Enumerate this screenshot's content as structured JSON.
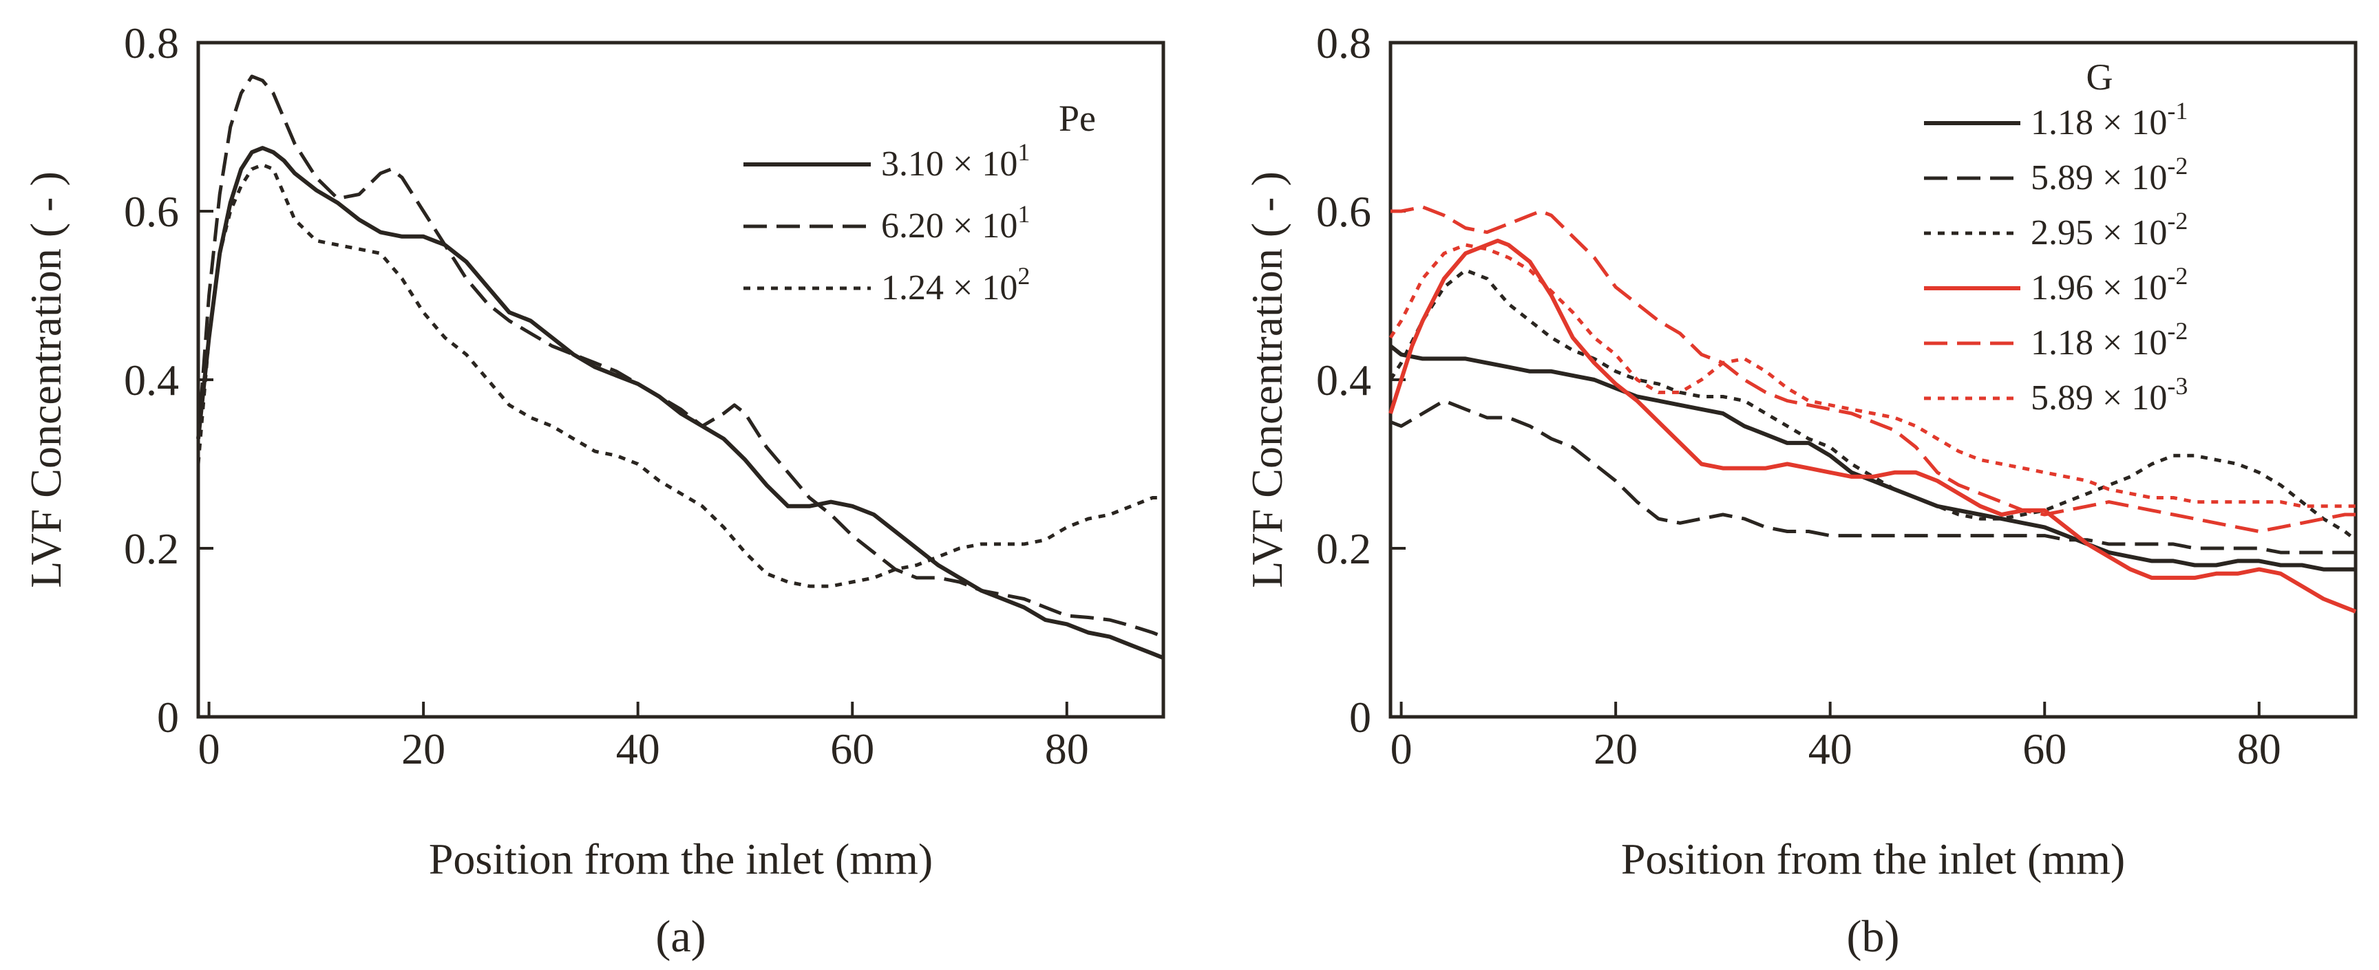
{
  "figure": {
    "panel_labels": [
      "(a)",
      "(b)"
    ]
  },
  "chart_data": [
    {
      "type": "line",
      "panel": "(a)",
      "title": "",
      "xlabel": "Position from the inlet  (mm)",
      "ylabel": "LVF Concentration ( - )",
      "xlim": [
        -1,
        89
      ],
      "ylim": [
        0,
        0.8
      ],
      "xticks": [
        0,
        20,
        40,
        60,
        80
      ],
      "xtick_labels": [
        "0",
        "20",
        "40",
        "60",
        "80"
      ],
      "yticks": [
        0,
        0.2,
        0.4,
        0.6,
        0.8
      ],
      "ytick_labels": [
        "0",
        "0.2",
        "0.4",
        "0.6",
        "0.8"
      ],
      "grid": false,
      "legend_title": "Pe",
      "legend_position": "top-right",
      "series": [
        {
          "name": "3.10 × 10^1",
          "label_main": "3.10 × 10",
          "label_exp": "1",
          "color": "#2a2520",
          "dash": "solid",
          "x": [
            -1,
            0,
            1,
            2,
            3,
            4,
            5,
            6,
            7,
            8,
            10,
            12,
            14,
            16,
            18,
            20,
            22,
            24,
            26,
            28,
            30,
            32,
            34,
            36,
            38,
            40,
            42,
            44,
            46,
            48,
            50,
            52,
            54,
            56,
            58,
            60,
            62,
            64,
            66,
            68,
            70,
            72,
            74,
            76,
            78,
            80,
            82,
            84,
            86,
            88,
            89
          ],
          "y": [
            0.33,
            0.45,
            0.55,
            0.61,
            0.65,
            0.67,
            0.675,
            0.67,
            0.66,
            0.645,
            0.625,
            0.61,
            0.59,
            0.575,
            0.57,
            0.57,
            0.56,
            0.54,
            0.51,
            0.48,
            0.47,
            0.45,
            0.43,
            0.415,
            0.405,
            0.395,
            0.38,
            0.36,
            0.345,
            0.33,
            0.305,
            0.275,
            0.25,
            0.25,
            0.255,
            0.25,
            0.24,
            0.22,
            0.2,
            0.18,
            0.165,
            0.15,
            0.14,
            0.13,
            0.115,
            0.11,
            0.1,
            0.095,
            0.085,
            0.075,
            0.07
          ]
        },
        {
          "name": "6.20 × 10^1",
          "label_main": "6.20 × 10",
          "label_exp": "1",
          "color": "#2a2520",
          "dash": "dashed",
          "x": [
            -1,
            0,
            1,
            2,
            3,
            4,
            5,
            6,
            7,
            8,
            10,
            12,
            14,
            16,
            17,
            18,
            20,
            22,
            24,
            26,
            28,
            30,
            32,
            34,
            36,
            38,
            40,
            42,
            44,
            46,
            48,
            49,
            50,
            52,
            54,
            56,
            58,
            60,
            62,
            64,
            66,
            68,
            70,
            72,
            74,
            76,
            78,
            80,
            82,
            84,
            86,
            88,
            89
          ],
          "y": [
            0.33,
            0.5,
            0.62,
            0.7,
            0.74,
            0.76,
            0.755,
            0.74,
            0.71,
            0.68,
            0.64,
            0.615,
            0.62,
            0.645,
            0.65,
            0.64,
            0.6,
            0.56,
            0.52,
            0.49,
            0.47,
            0.455,
            0.44,
            0.43,
            0.42,
            0.41,
            0.395,
            0.38,
            0.365,
            0.345,
            0.36,
            0.37,
            0.36,
            0.32,
            0.29,
            0.26,
            0.24,
            0.215,
            0.195,
            0.175,
            0.165,
            0.165,
            0.16,
            0.15,
            0.145,
            0.14,
            0.13,
            0.12,
            0.118,
            0.115,
            0.108,
            0.1,
            0.095
          ]
        },
        {
          "name": "1.24 × 10^2",
          "label_main": "1.24 × 10",
          "label_exp": "2",
          "color": "#2a2520",
          "dash": "dotted",
          "x": [
            -1,
            0,
            1,
            2,
            3,
            4,
            5,
            6,
            7,
            8,
            10,
            12,
            14,
            16,
            18,
            20,
            22,
            24,
            26,
            28,
            30,
            32,
            34,
            36,
            38,
            40,
            42,
            44,
            46,
            48,
            50,
            52,
            54,
            56,
            58,
            60,
            62,
            64,
            66,
            68,
            70,
            72,
            74,
            76,
            78,
            80,
            82,
            84,
            86,
            88,
            89
          ],
          "y": [
            0.3,
            0.45,
            0.55,
            0.6,
            0.63,
            0.65,
            0.655,
            0.65,
            0.62,
            0.59,
            0.565,
            0.56,
            0.555,
            0.55,
            0.52,
            0.48,
            0.45,
            0.43,
            0.4,
            0.37,
            0.355,
            0.345,
            0.33,
            0.315,
            0.31,
            0.3,
            0.28,
            0.265,
            0.25,
            0.225,
            0.195,
            0.17,
            0.16,
            0.155,
            0.155,
            0.16,
            0.165,
            0.175,
            0.18,
            0.19,
            0.2,
            0.205,
            0.205,
            0.205,
            0.21,
            0.225,
            0.235,
            0.24,
            0.25,
            0.26,
            0.26
          ]
        }
      ]
    },
    {
      "type": "line",
      "panel": "(b)",
      "title": "",
      "xlabel": "Position from the inlet  (mm)",
      "ylabel": "LVF Concentration ( - )",
      "xlim": [
        -1,
        89
      ],
      "ylim": [
        0,
        0.8
      ],
      "xticks": [
        0,
        20,
        40,
        60,
        80
      ],
      "xtick_labels": [
        "0",
        "20",
        "40",
        "60",
        "80"
      ],
      "yticks": [
        0,
        0.2,
        0.4,
        0.6,
        0.8
      ],
      "ytick_labels": [
        "0",
        "0.2",
        "0.4",
        "0.6",
        "0.8"
      ],
      "grid": false,
      "legend_title": "G",
      "legend_position": "top-right",
      "series": [
        {
          "name": "1.18 × 10^-1",
          "label_main": "1.18 × 10",
          "label_exp": "-1",
          "color": "#2a2520",
          "dash": "solid",
          "x": [
            -1,
            0,
            2,
            4,
            6,
            8,
            10,
            12,
            14,
            16,
            18,
            20,
            22,
            24,
            26,
            28,
            30,
            32,
            34,
            36,
            38,
            40,
            42,
            44,
            46,
            48,
            50,
            52,
            54,
            56,
            58,
            60,
            62,
            64,
            66,
            68,
            70,
            72,
            74,
            76,
            78,
            80,
            82,
            84,
            86,
            88,
            89
          ],
          "y": [
            0.44,
            0.43,
            0.425,
            0.425,
            0.425,
            0.42,
            0.415,
            0.41,
            0.41,
            0.405,
            0.4,
            0.39,
            0.38,
            0.375,
            0.37,
            0.365,
            0.36,
            0.345,
            0.335,
            0.325,
            0.325,
            0.31,
            0.29,
            0.28,
            0.27,
            0.26,
            0.25,
            0.245,
            0.24,
            0.235,
            0.23,
            0.225,
            0.215,
            0.205,
            0.195,
            0.19,
            0.185,
            0.185,
            0.18,
            0.18,
            0.185,
            0.185,
            0.18,
            0.18,
            0.175,
            0.175,
            0.175
          ]
        },
        {
          "name": "5.89 × 10^-2",
          "label_main": "5.89 × 10",
          "label_exp": "-2",
          "color": "#2a2520",
          "dash": "dashed",
          "x": [
            -1,
            0,
            2,
            4,
            6,
            8,
            10,
            12,
            14,
            16,
            18,
            20,
            22,
            24,
            26,
            28,
            30,
            32,
            34,
            36,
            38,
            40,
            42,
            44,
            46,
            48,
            50,
            52,
            54,
            56,
            58,
            60,
            62,
            64,
            66,
            68,
            70,
            72,
            74,
            76,
            78,
            80,
            82,
            84,
            86,
            88,
            89
          ],
          "y": [
            0.35,
            0.345,
            0.36,
            0.375,
            0.365,
            0.355,
            0.355,
            0.345,
            0.33,
            0.32,
            0.3,
            0.28,
            0.255,
            0.235,
            0.23,
            0.235,
            0.24,
            0.235,
            0.225,
            0.22,
            0.22,
            0.215,
            0.215,
            0.215,
            0.215,
            0.215,
            0.215,
            0.215,
            0.215,
            0.215,
            0.215,
            0.215,
            0.21,
            0.21,
            0.205,
            0.205,
            0.205,
            0.205,
            0.2,
            0.2,
            0.2,
            0.2,
            0.195,
            0.195,
            0.195,
            0.195,
            0.195
          ]
        },
        {
          "name": "2.95 × 10^-2",
          "label_main": "2.95 × 10",
          "label_exp": "-2",
          "color": "#2a2520",
          "dash": "dotted",
          "x": [
            -1,
            0,
            2,
            4,
            6,
            8,
            10,
            12,
            14,
            16,
            18,
            20,
            22,
            24,
            26,
            28,
            30,
            32,
            34,
            36,
            38,
            40,
            42,
            44,
            46,
            48,
            50,
            52,
            54,
            56,
            58,
            60,
            62,
            64,
            66,
            68,
            70,
            72,
            74,
            76,
            78,
            80,
            82,
            84,
            86,
            88,
            89
          ],
          "y": [
            0.4,
            0.42,
            0.47,
            0.51,
            0.53,
            0.52,
            0.49,
            0.47,
            0.45,
            0.435,
            0.425,
            0.41,
            0.4,
            0.395,
            0.385,
            0.38,
            0.38,
            0.375,
            0.36,
            0.345,
            0.33,
            0.32,
            0.3,
            0.285,
            0.27,
            0.26,
            0.25,
            0.24,
            0.235,
            0.235,
            0.24,
            0.245,
            0.255,
            0.265,
            0.275,
            0.285,
            0.3,
            0.31,
            0.31,
            0.305,
            0.3,
            0.29,
            0.275,
            0.255,
            0.235,
            0.22,
            0.21
          ]
        },
        {
          "name": "1.96 × 10^-2",
          "label_main": "1.96 × 10",
          "label_exp": "-2",
          "color": "#e2392c",
          "dash": "solid",
          "x": [
            -1,
            0,
            1,
            2,
            4,
            6,
            8,
            9,
            10,
            12,
            14,
            16,
            18,
            20,
            22,
            24,
            26,
            28,
            30,
            32,
            34,
            36,
            38,
            40,
            42,
            44,
            46,
            48,
            50,
            52,
            54,
            56,
            58,
            60,
            62,
            64,
            66,
            68,
            70,
            72,
            74,
            76,
            78,
            80,
            82,
            84,
            86,
            88,
            89
          ],
          "y": [
            0.36,
            0.4,
            0.44,
            0.47,
            0.52,
            0.55,
            0.56,
            0.565,
            0.56,
            0.54,
            0.5,
            0.45,
            0.42,
            0.395,
            0.375,
            0.35,
            0.325,
            0.3,
            0.295,
            0.295,
            0.295,
            0.3,
            0.295,
            0.29,
            0.285,
            0.285,
            0.29,
            0.29,
            0.28,
            0.265,
            0.25,
            0.24,
            0.245,
            0.245,
            0.225,
            0.205,
            0.19,
            0.175,
            0.165,
            0.165,
            0.165,
            0.17,
            0.17,
            0.175,
            0.17,
            0.155,
            0.14,
            0.13,
            0.125
          ]
        },
        {
          "name": "1.18 × 10^-2",
          "label_main": "1.18 × 10",
          "label_exp": "-2",
          "color": "#e2392c",
          "dash": "dashed",
          "x": [
            -1,
            0,
            2,
            4,
            6,
            8,
            10,
            12,
            13,
            14,
            16,
            18,
            20,
            22,
            24,
            26,
            28,
            30,
            32,
            34,
            36,
            38,
            40,
            42,
            44,
            46,
            48,
            50,
            52,
            54,
            56,
            58,
            60,
            62,
            64,
            66,
            68,
            70,
            72,
            74,
            76,
            78,
            80,
            82,
            84,
            86,
            88,
            89
          ],
          "y": [
            0.6,
            0.6,
            0.605,
            0.595,
            0.58,
            0.575,
            0.585,
            0.595,
            0.6,
            0.595,
            0.57,
            0.545,
            0.51,
            0.49,
            0.47,
            0.455,
            0.43,
            0.42,
            0.4,
            0.385,
            0.375,
            0.37,
            0.365,
            0.36,
            0.35,
            0.34,
            0.32,
            0.29,
            0.275,
            0.265,
            0.255,
            0.245,
            0.24,
            0.245,
            0.25,
            0.255,
            0.25,
            0.245,
            0.24,
            0.235,
            0.23,
            0.225,
            0.22,
            0.225,
            0.23,
            0.235,
            0.24,
            0.24
          ]
        },
        {
          "name": "5.89 × 10^-3",
          "label_main": "5.89 × 10",
          "label_exp": "-3",
          "color": "#e2392c",
          "dash": "dotted",
          "x": [
            -1,
            0,
            2,
            4,
            6,
            8,
            10,
            12,
            14,
            16,
            18,
            20,
            22,
            24,
            26,
            28,
            30,
            32,
            34,
            36,
            38,
            40,
            42,
            44,
            46,
            48,
            50,
            52,
            54,
            56,
            58,
            60,
            62,
            64,
            66,
            68,
            70,
            72,
            74,
            76,
            78,
            80,
            82,
            84,
            86,
            88,
            89
          ],
          "y": [
            0.45,
            0.47,
            0.52,
            0.55,
            0.56,
            0.555,
            0.545,
            0.53,
            0.505,
            0.48,
            0.45,
            0.43,
            0.4,
            0.385,
            0.385,
            0.4,
            0.42,
            0.425,
            0.41,
            0.39,
            0.375,
            0.37,
            0.365,
            0.36,
            0.355,
            0.345,
            0.33,
            0.315,
            0.305,
            0.3,
            0.295,
            0.29,
            0.285,
            0.28,
            0.27,
            0.265,
            0.26,
            0.26,
            0.255,
            0.255,
            0.255,
            0.255,
            0.255,
            0.25,
            0.25,
            0.25,
            0.25
          ]
        }
      ]
    }
  ]
}
